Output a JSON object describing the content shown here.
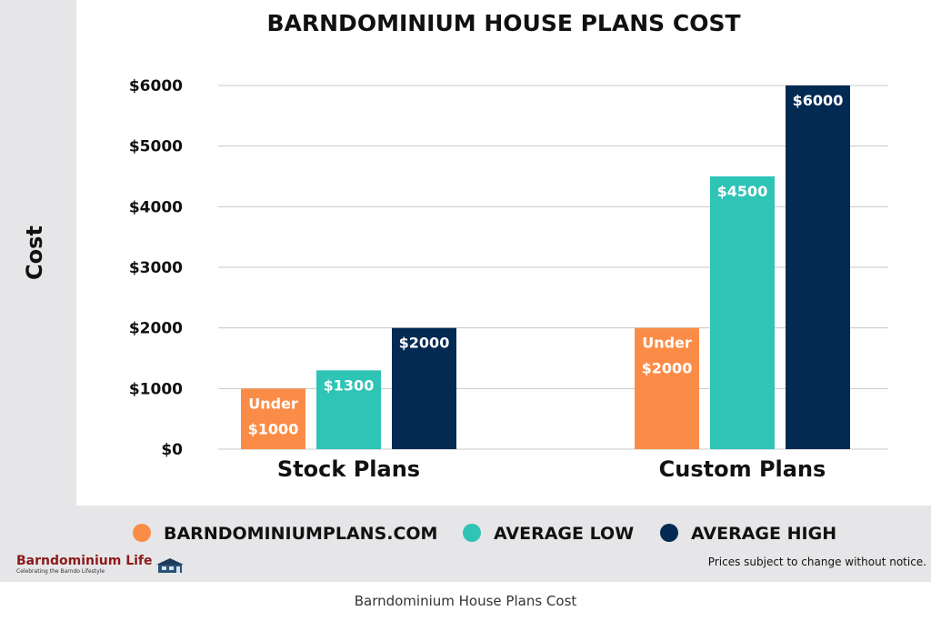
{
  "chart_data": {
    "type": "bar",
    "title": "BARNDOMINIUM HOUSE PLANS COST",
    "ylabel": "Cost",
    "xlabel": "",
    "ylim": [
      0,
      6000
    ],
    "yticks": [
      0,
      1000,
      2000,
      3000,
      4000,
      5000,
      6000
    ],
    "ytick_labels": [
      "$0",
      "$1000",
      "$2000",
      "$3000",
      "$4000",
      "$5000",
      "$6000"
    ],
    "categories": [
      "Stock Plans",
      "Custom Plans"
    ],
    "grid": true,
    "legend_placement": "bottom",
    "series": [
      {
        "name": "BARNDOMINIUMPLANS.COM",
        "color": "#fb8c47",
        "values": [
          1000,
          2000
        ],
        "labels": [
          [
            "Under",
            "$1000"
          ],
          [
            "Under",
            "$2000"
          ]
        ]
      },
      {
        "name": "AVERAGE LOW",
        "color": "#2ec4b6",
        "values": [
          1300,
          4500
        ],
        "labels": [
          [
            "$1300"
          ],
          [
            "$4500"
          ]
        ]
      },
      {
        "name": "AVERAGE HIGH",
        "color": "#032a52",
        "values": [
          2000,
          6000
        ],
        "labels": [
          [
            "$2000"
          ],
          [
            "$6000"
          ]
        ]
      }
    ]
  },
  "brand": {
    "name": "Barndominium Life",
    "tagline": "Celebrating the Barndo Lifestyle"
  },
  "disclaimer": "Prices subject to change without notice.",
  "caption": "Barndominium House Plans Cost"
}
